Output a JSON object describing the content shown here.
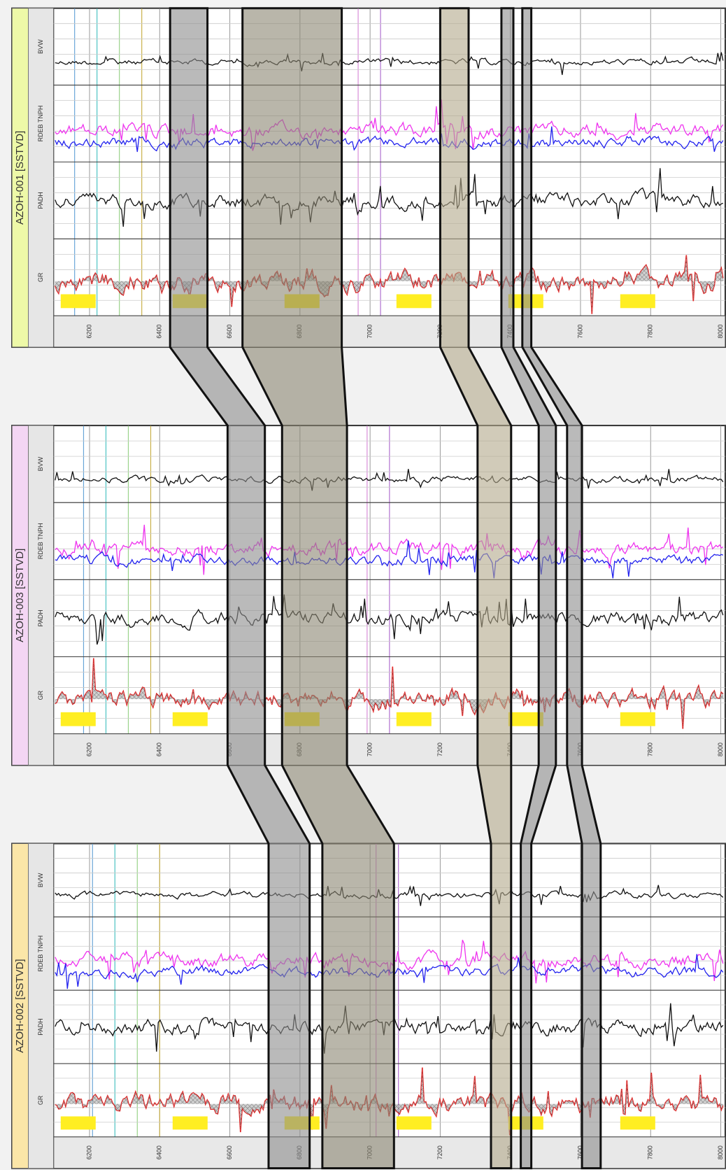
{
  "wells": [
    {
      "name": "AZOH-001 [SSTVD]",
      "tracks": [
        "BVW",
        "RDEB TNPH",
        "PADH",
        "GR"
      ],
      "depths": [
        6200,
        6400,
        6600,
        6800,
        7000,
        7200,
        7400,
        7600,
        7800,
        8000
      ]
    },
    {
      "name": "AZOH-003 [SSTVD]",
      "tracks": [
        "BVW",
        "RDEB TNPH",
        "PADH",
        "GR"
      ],
      "depths": [
        6200,
        6400,
        6600,
        6800,
        7000,
        7200,
        7400,
        7600,
        7800,
        8000
      ]
    },
    {
      "name": "AZOH-002 [SSTVD]",
      "tracks": [
        "BVW",
        "RDEB TNPH",
        "PADH",
        "GR"
      ],
      "depths": [
        6200,
        6400,
        6600,
        6800,
        7000,
        7200,
        7400,
        7600,
        7800,
        8000
      ]
    }
  ]
}
